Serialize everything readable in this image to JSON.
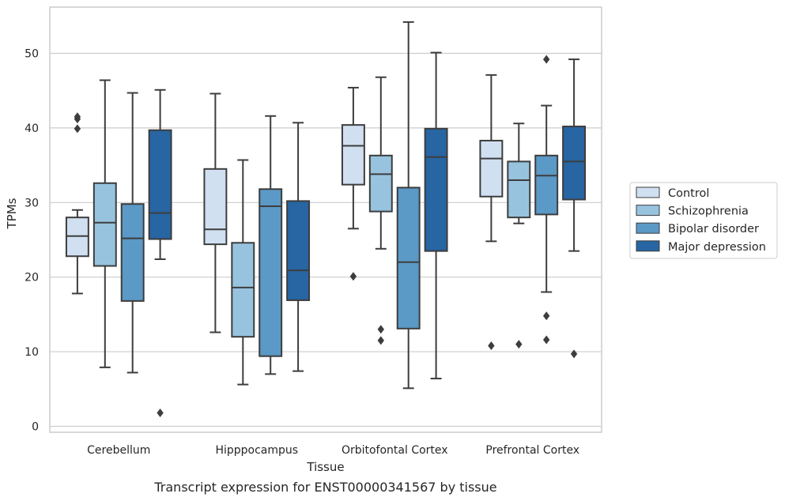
{
  "chart_data": {
    "type": "box",
    "title": "",
    "caption": "Transcript expression for ENST00000341567 by tissue",
    "xlabel": "Tissue",
    "ylabel": "TPMs",
    "ylim": [
      -0.8,
      56.2
    ],
    "yticks": [
      0,
      10,
      20,
      30,
      40,
      50
    ],
    "grid": "horizontal",
    "legend_position": "right",
    "categories": [
      "Cerebellum",
      "Hipppocampus",
      "Orbitofontal Cortex",
      "Prefrontal Cortex"
    ],
    "series": [
      {
        "name": "Control",
        "color": "#d0e0f1",
        "boxes": [
          {
            "whislo": 17.8,
            "q1": 22.8,
            "med": 25.5,
            "q3": 28.0,
            "whishi": 29.0,
            "fliers": [
              41.2,
              41.5,
              39.9
            ]
          },
          {
            "whislo": 12.6,
            "q1": 24.4,
            "med": 26.4,
            "q3": 34.5,
            "whishi": 44.6,
            "fliers": []
          },
          {
            "whislo": 26.5,
            "q1": 32.4,
            "med": 37.6,
            "q3": 40.4,
            "whishi": 45.4,
            "fliers": [
              20.1
            ]
          },
          {
            "whislo": 24.8,
            "q1": 30.8,
            "med": 35.9,
            "q3": 38.3,
            "whishi": 47.1,
            "fliers": [
              10.8
            ]
          }
        ]
      },
      {
        "name": "Schizophrenia",
        "color": "#97c3df",
        "boxes": [
          {
            "whislo": 7.9,
            "q1": 21.5,
            "med": 27.3,
            "q3": 32.6,
            "whishi": 46.4,
            "fliers": []
          },
          {
            "whislo": 5.6,
            "q1": 12.0,
            "med": 18.6,
            "q3": 24.6,
            "whishi": 35.7,
            "fliers": []
          },
          {
            "whislo": 23.8,
            "q1": 28.8,
            "med": 33.8,
            "q3": 36.3,
            "whishi": 46.8,
            "fliers": [
              13.0,
              11.5
            ]
          },
          {
            "whislo": 27.2,
            "q1": 28.0,
            "med": 33.0,
            "q3": 35.5,
            "whishi": 40.6,
            "fliers": [
              11.0
            ]
          }
        ]
      },
      {
        "name": "Bipolar disorder",
        "color": "#5b99c6",
        "boxes": [
          {
            "whislo": 7.2,
            "q1": 16.8,
            "med": 25.2,
            "q3": 29.8,
            "whishi": 44.7,
            "fliers": []
          },
          {
            "whislo": 7.0,
            "q1": 9.4,
            "med": 29.5,
            "q3": 31.8,
            "whishi": 41.6,
            "fliers": []
          },
          {
            "whislo": 5.1,
            "q1": 13.1,
            "med": 22.0,
            "q3": 32.0,
            "whishi": 54.2,
            "fliers": []
          },
          {
            "whislo": 18.0,
            "q1": 28.4,
            "med": 33.6,
            "q3": 36.3,
            "whishi": 43.0,
            "fliers": [
              49.2,
              14.8,
              11.6
            ]
          }
        ]
      },
      {
        "name": "Major depression",
        "color": "#2765a3",
        "boxes": [
          {
            "whislo": 22.4,
            "q1": 25.1,
            "med": 28.6,
            "q3": 39.7,
            "whishi": 45.1,
            "fliers": [
              1.8
            ]
          },
          {
            "whislo": 7.4,
            "q1": 16.9,
            "med": 20.9,
            "q3": 30.2,
            "whishi": 40.7,
            "fliers": []
          },
          {
            "whislo": 6.4,
            "q1": 23.5,
            "med": 36.1,
            "q3": 39.9,
            "whishi": 50.1,
            "fliers": []
          },
          {
            "whislo": 23.5,
            "q1": 30.4,
            "med": 35.5,
            "q3": 40.2,
            "whishi": 49.2,
            "fliers": [
              9.7
            ]
          }
        ]
      }
    ]
  }
}
